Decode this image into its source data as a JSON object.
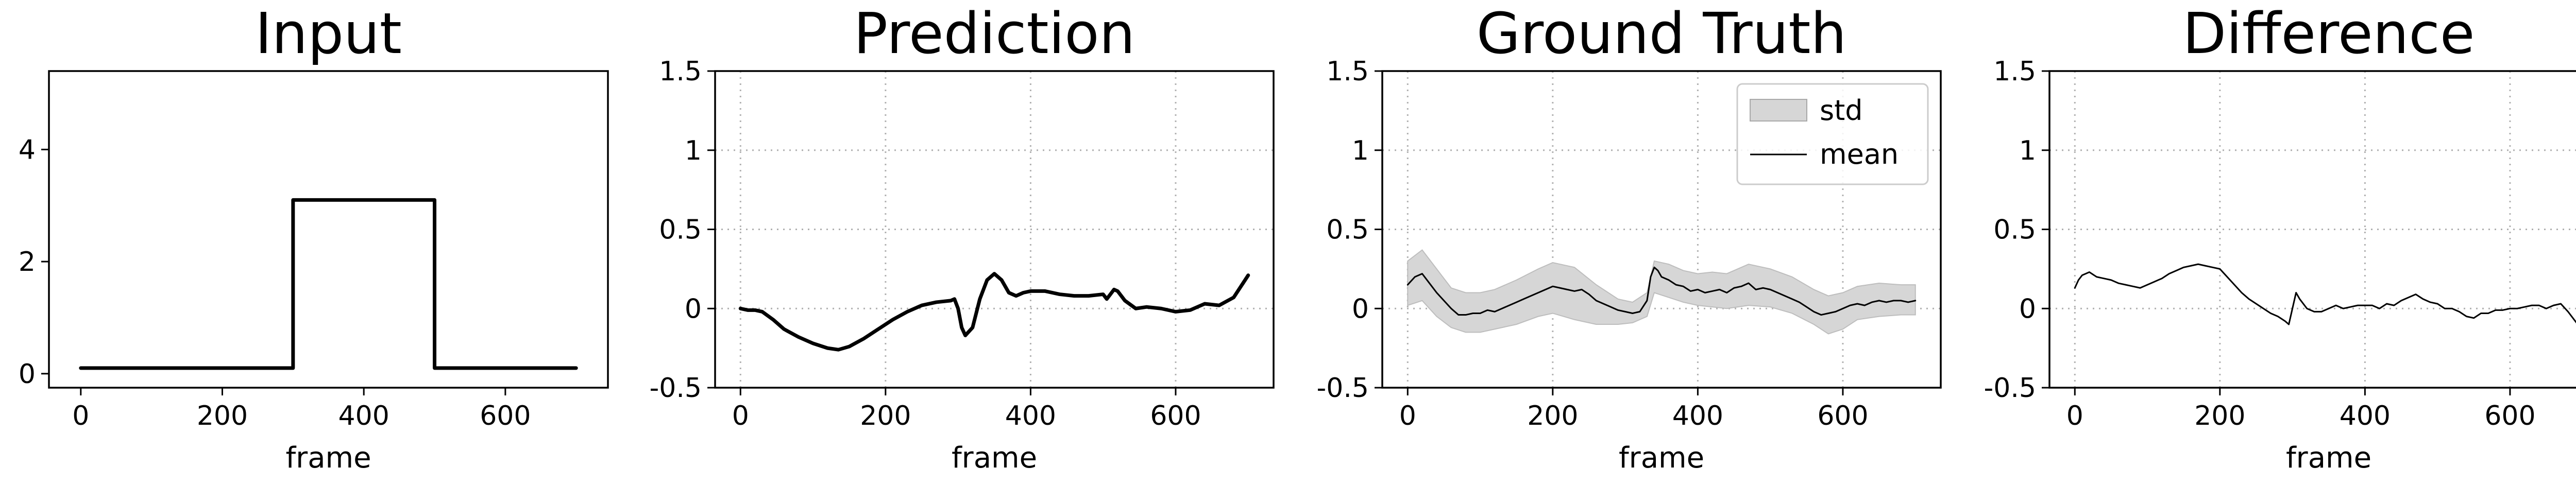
{
  "chart_data": [
    {
      "type": "line",
      "title": "Input",
      "xlabel": "frame",
      "ylabel": "",
      "xlim": [
        -45,
        745
      ],
      "ylim": [
        -0.25,
        5.4
      ],
      "xticks": [
        0,
        200,
        400,
        600
      ],
      "yticks": [
        0,
        2,
        4
      ],
      "grid": false,
      "series": [
        {
          "x": [
            0,
            300,
            300,
            500,
            500,
            700
          ],
          "y": [
            0.1,
            0.1,
            3.1,
            3.1,
            0.1,
            0.1
          ]
        }
      ]
    },
    {
      "type": "line",
      "title": "Prediction",
      "xlabel": "frame",
      "ylabel": "",
      "xlim": [
        -35,
        735
      ],
      "ylim": [
        -0.5,
        1.5
      ],
      "xticks": [
        0,
        200,
        400,
        600
      ],
      "yticks": [
        -0.5,
        0.0,
        0.5,
        1.0,
        1.5
      ],
      "grid": true,
      "series": [
        {
          "x": [
            0,
            10,
            20,
            30,
            45,
            60,
            80,
            100,
            120,
            135,
            150,
            170,
            190,
            210,
            230,
            250,
            270,
            290,
            295,
            300,
            305,
            310,
            320,
            330,
            340,
            350,
            360,
            370,
            380,
            390,
            400,
            420,
            440,
            460,
            480,
            500,
            505,
            510,
            515,
            520,
            530,
            545,
            560,
            580,
            600,
            620,
            640,
            660,
            680,
            700
          ],
          "y": [
            0.0,
            -0.01,
            -0.01,
            -0.02,
            -0.07,
            -0.13,
            -0.18,
            -0.22,
            -0.25,
            -0.26,
            -0.24,
            -0.19,
            -0.13,
            -0.07,
            -0.02,
            0.02,
            0.04,
            0.05,
            0.06,
            0.0,
            -0.12,
            -0.17,
            -0.12,
            0.06,
            0.18,
            0.22,
            0.18,
            0.1,
            0.08,
            0.1,
            0.11,
            0.11,
            0.09,
            0.08,
            0.08,
            0.09,
            0.06,
            0.09,
            0.12,
            0.11,
            0.05,
            0.0,
            0.01,
            0.0,
            -0.02,
            -0.01,
            0.03,
            0.02,
            0.07,
            0.21
          ]
        }
      ]
    },
    {
      "type": "area",
      "title": "Ground Truth",
      "xlabel": "frame",
      "ylabel": "",
      "xlim": [
        -35,
        735
      ],
      "ylim": [
        -0.5,
        1.5
      ],
      "xticks": [
        0,
        200,
        400,
        600
      ],
      "yticks": [
        -0.5,
        0.0,
        0.5,
        1.0,
        1.5
      ],
      "grid": true,
      "legend": "top-right",
      "band_color": "#d6d6d6",
      "line_color": "#000000",
      "series": [
        {
          "name": "std",
          "x": [
            0,
            20,
            40,
            60,
            80,
            100,
            120,
            150,
            180,
            200,
            230,
            260,
            290,
            310,
            330,
            340,
            360,
            380,
            400,
            420,
            440,
            470,
            500,
            530,
            560,
            580,
            600,
            620,
            650,
            680,
            700
          ],
          "lower": [
            0.02,
            0.05,
            -0.05,
            -0.12,
            -0.15,
            -0.15,
            -0.13,
            -0.1,
            -0.05,
            -0.03,
            -0.07,
            -0.1,
            -0.1,
            -0.09,
            -0.05,
            0.1,
            0.07,
            0.04,
            0.02,
            0.01,
            0.0,
            0.02,
            0.01,
            -0.03,
            -0.1,
            -0.16,
            -0.13,
            -0.07,
            -0.05,
            -0.04,
            -0.04
          ],
          "upper": [
            0.3,
            0.37,
            0.25,
            0.13,
            0.1,
            0.1,
            0.12,
            0.18,
            0.25,
            0.29,
            0.26,
            0.15,
            0.06,
            0.04,
            0.1,
            0.3,
            0.28,
            0.24,
            0.22,
            0.23,
            0.22,
            0.28,
            0.25,
            0.2,
            0.12,
            0.08,
            0.1,
            0.14,
            0.16,
            0.15,
            0.15
          ]
        },
        {
          "name": "mean",
          "x": [
            0,
            10,
            20,
            30,
            40,
            50,
            60,
            70,
            80,
            90,
            100,
            110,
            120,
            130,
            140,
            150,
            160,
            170,
            180,
            190,
            200,
            210,
            220,
            230,
            240,
            250,
            260,
            270,
            280,
            290,
            300,
            310,
            320,
            330,
            335,
            340,
            345,
            350,
            360,
            370,
            380,
            390,
            400,
            410,
            420,
            430,
            440,
            450,
            460,
            470,
            480,
            490,
            500,
            510,
            520,
            530,
            540,
            550,
            560,
            570,
            580,
            590,
            600,
            610,
            620,
            630,
            640,
            650,
            660,
            670,
            680,
            690,
            700
          ],
          "y": [
            0.15,
            0.2,
            0.22,
            0.16,
            0.1,
            0.05,
            0.0,
            -0.04,
            -0.04,
            -0.03,
            -0.03,
            -0.01,
            -0.02,
            0.0,
            0.02,
            0.04,
            0.06,
            0.08,
            0.1,
            0.12,
            0.14,
            0.13,
            0.12,
            0.11,
            0.12,
            0.09,
            0.05,
            0.03,
            0.01,
            -0.01,
            -0.02,
            -0.03,
            -0.02,
            0.05,
            0.2,
            0.26,
            0.24,
            0.2,
            0.18,
            0.15,
            0.14,
            0.11,
            0.12,
            0.1,
            0.11,
            0.12,
            0.1,
            0.13,
            0.14,
            0.16,
            0.12,
            0.13,
            0.12,
            0.1,
            0.08,
            0.06,
            0.04,
            0.01,
            -0.02,
            -0.04,
            -0.03,
            -0.02,
            0.0,
            0.02,
            0.03,
            0.02,
            0.04,
            0.05,
            0.04,
            0.05,
            0.05,
            0.04,
            0.05
          ]
        }
      ]
    },
    {
      "type": "line",
      "title": "Difference",
      "xlabel": "frame",
      "ylabel": "",
      "xlim": [
        -35,
        735
      ],
      "ylim": [
        -0.5,
        1.5
      ],
      "xticks": [
        0,
        200,
        400,
        600
      ],
      "yticks": [
        -0.5,
        0.0,
        0.5,
        1.0,
        1.5
      ],
      "grid": true,
      "series": [
        {
          "x": [
            0,
            5,
            10,
            20,
            30,
            40,
            50,
            60,
            70,
            80,
            90,
            100,
            110,
            120,
            130,
            140,
            150,
            160,
            170,
            180,
            190,
            200,
            210,
            220,
            230,
            240,
            250,
            260,
            270,
            280,
            290,
            295,
            300,
            305,
            310,
            320,
            330,
            340,
            350,
            360,
            370,
            380,
            390,
            400,
            410,
            420,
            430,
            440,
            450,
            460,
            470,
            480,
            490,
            500,
            510,
            520,
            530,
            540,
            550,
            560,
            570,
            580,
            590,
            600,
            610,
            620,
            630,
            640,
            650,
            660,
            670,
            680,
            690,
            700
          ],
          "y": [
            0.13,
            0.18,
            0.21,
            0.23,
            0.2,
            0.19,
            0.18,
            0.16,
            0.15,
            0.14,
            0.13,
            0.15,
            0.17,
            0.19,
            0.22,
            0.24,
            0.26,
            0.27,
            0.28,
            0.27,
            0.26,
            0.25,
            0.2,
            0.15,
            0.1,
            0.06,
            0.03,
            0.0,
            -0.03,
            -0.05,
            -0.08,
            -0.1,
            0.0,
            0.1,
            0.06,
            0.0,
            -0.02,
            -0.02,
            0.0,
            0.02,
            0.0,
            0.01,
            0.02,
            0.02,
            0.02,
            0.0,
            0.03,
            0.02,
            0.05,
            0.07,
            0.09,
            0.06,
            0.04,
            0.03,
            0.0,
            0.0,
            -0.02,
            -0.05,
            -0.06,
            -0.03,
            -0.03,
            -0.01,
            -0.01,
            0.0,
            0.0,
            0.01,
            0.02,
            0.02,
            0.0,
            0.02,
            0.03,
            -0.02,
            -0.08,
            -0.14
          ]
        }
      ]
    }
  ]
}
